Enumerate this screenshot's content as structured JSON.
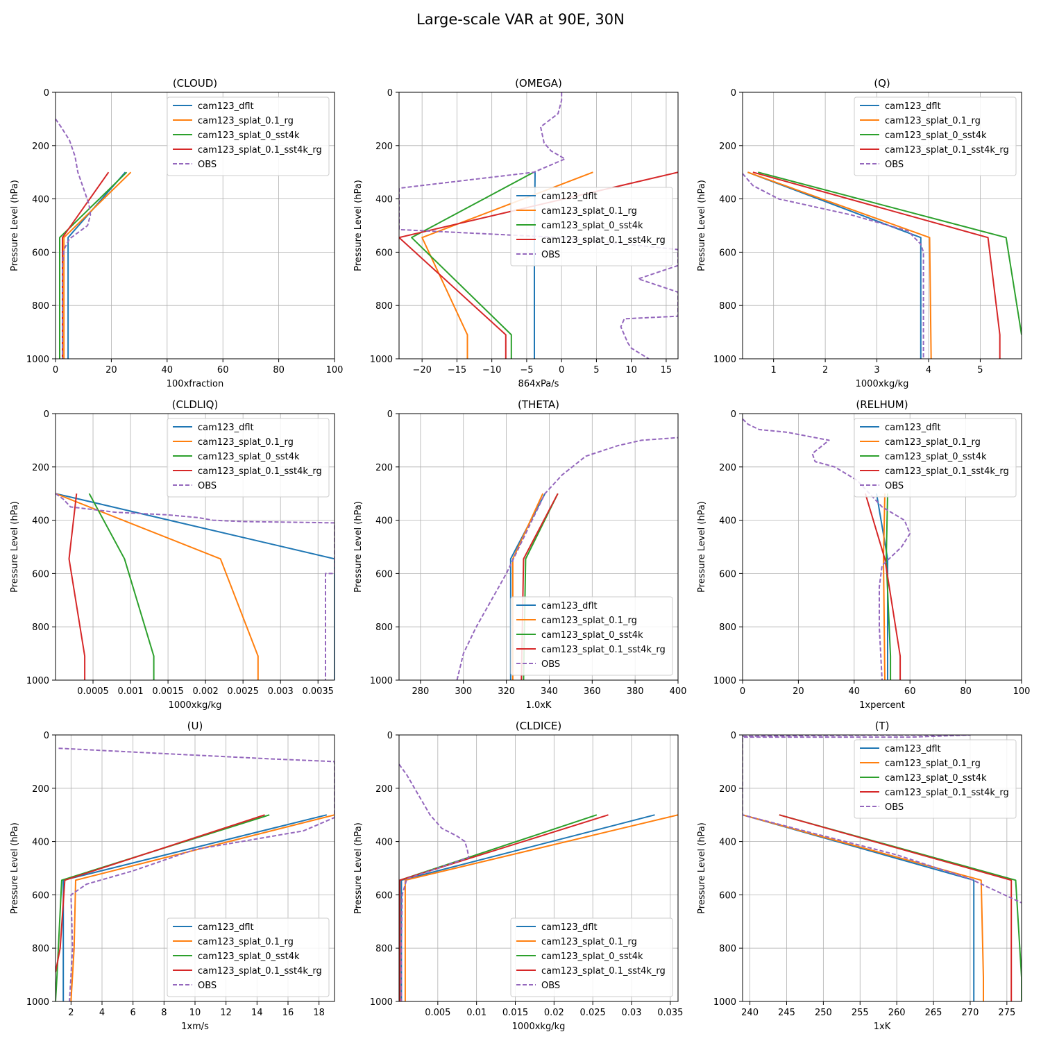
{
  "figure": {
    "title": "Large-scale VAR at 90E, 30N"
  },
  "colors": {
    "cam123_dflt": "#1f77b4",
    "cam123_splat_0.1_rg": "#ff7f0e",
    "cam123_splat_0_sst4k": "#2ca02c",
    "cam123_splat_0.1_sst4k_rg": "#d62728",
    "OBS": "#9467bd"
  },
  "chart_data": [
    {
      "type": "line",
      "title": "(CLOUD)",
      "xlabel": "100xfraction",
      "ylabel": "Pressure Level (hPa)",
      "xlim": [
        0,
        100
      ],
      "ylim": [
        1000,
        0
      ],
      "xticks": [
        0,
        20,
        40,
        60,
        80,
        100
      ],
      "yticks": [
        0,
        200,
        400,
        600,
        800,
        1000
      ],
      "grid": true,
      "legend": "top-right",
      "series": [
        {
          "name": "cam123_dflt",
          "x": [
            25,
            4.5,
            4.5
          ],
          "y": [
            300,
            545,
            1000
          ]
        },
        {
          "name": "cam123_splat_0.1_rg",
          "x": [
            27,
            3,
            3
          ],
          "y": [
            300,
            545,
            1000
          ]
        },
        {
          "name": "cam123_splat_0_sst4k",
          "x": [
            25.5,
            1.5,
            1.5
          ],
          "y": [
            300,
            545,
            1000
          ]
        },
        {
          "name": "cam123_splat_0.1_sst4k_rg",
          "x": [
            19,
            2.5,
            2.5
          ],
          "y": [
            300,
            545,
            1000
          ]
        },
        {
          "name": "OBS",
          "x": [
            0,
            2,
            5,
            7,
            8,
            10,
            12,
            12.5,
            11.5,
            5,
            3,
            2.5,
            2.5,
            2.5
          ],
          "y": [
            100,
            130,
            180,
            240,
            300,
            360,
            420,
            460,
            500,
            550,
            590,
            650,
            800,
            1000
          ]
        }
      ]
    },
    {
      "type": "line",
      "title": "(OMEGA)",
      "xlabel": "864xPa/s",
      "ylabel": "Pressure Level (hPa)",
      "xlim": [
        -23.3,
        16.7
      ],
      "ylim": [
        1000,
        0
      ],
      "xticks": [
        -20,
        -15,
        -10,
        -5,
        0,
        5,
        10,
        15
      ],
      "yticks": [
        0,
        200,
        400,
        600,
        800,
        1000
      ],
      "grid": true,
      "legend": "center-right",
      "series": [
        {
          "name": "cam123_dflt",
          "x": [
            -3.8,
            -3.9,
            -3.9
          ],
          "y": [
            300,
            545,
            1000
          ]
        },
        {
          "name": "cam123_splat_0.1_rg",
          "x": [
            4.5,
            -20,
            -13.5,
            -13.5
          ],
          "y": [
            300,
            545,
            910,
            1000
          ]
        },
        {
          "name": "cam123_splat_0_sst4k",
          "x": [
            -4,
            -21.5,
            -7.2,
            -7.2
          ],
          "y": [
            300,
            545,
            910,
            1000
          ]
        },
        {
          "name": "cam123_splat_0.1_sst4k_rg",
          "x": [
            16.7,
            -23.3,
            -8,
            -8
          ],
          "y": [
            300,
            545,
            910,
            1000
          ]
        },
        {
          "name": "OBS",
          "x": [
            0,
            0,
            -0.5,
            -3,
            -2.5,
            -1.5,
            0.5,
            -4,
            -23.3,
            -23.3,
            -23.3,
            0,
            16.7,
            16.7,
            11,
            16.7,
            16.7,
            9,
            8.5,
            9.5,
            10,
            12.5
          ],
          "y": [
            0,
            30,
            80,
            130,
            190,
            220,
            250,
            300,
            360,
            360,
            515,
            545,
            590,
            650,
            700,
            750,
            840,
            850,
            880,
            940,
            960,
            1000
          ]
        }
      ]
    },
    {
      "type": "line",
      "title": "(Q)",
      "xlabel": "1000xkg/kg",
      "ylabel": "Pressure Level (hPa)",
      "xlim": [
        0.4,
        5.8
      ],
      "ylim": [
        1000,
        0
      ],
      "xticks": [
        1,
        2,
        3,
        4,
        5
      ],
      "yticks": [
        0,
        200,
        400,
        600,
        800,
        1000
      ],
      "grid": true,
      "legend": "top-right",
      "series": [
        {
          "name": "cam123_dflt",
          "x": [
            0.5,
            3.85,
            3.85
          ],
          "y": [
            300,
            545,
            1000
          ]
        },
        {
          "name": "cam123_splat_0.1_rg",
          "x": [
            0.5,
            4.02,
            4.05
          ],
          "y": [
            300,
            545,
            1000
          ]
        },
        {
          "name": "cam123_splat_0_sst4k",
          "x": [
            0.7,
            5.5,
            5.8
          ],
          "y": [
            300,
            545,
            910
          ]
        },
        {
          "name": "cam123_splat_0.1_sst4k_rg",
          "x": [
            0.6,
            5.15,
            5.38,
            5.38
          ],
          "y": [
            300,
            545,
            910,
            1000
          ]
        },
        {
          "name": "OBS",
          "x": [
            0.4,
            0.6,
            1.1,
            2.5,
            3.6,
            3.85,
            3.9,
            3.9,
            3.9
          ],
          "y": [
            305,
            350,
            400,
            460,
            520,
            570,
            600,
            800,
            1000
          ]
        }
      ]
    },
    {
      "type": "line",
      "title": "(CLDLIQ)",
      "xlabel": "1000xkg/kg",
      "ylabel": "Pressure Level (hPa)",
      "xlim": [
        0,
        0.00372
      ],
      "ylim": [
        1000,
        0
      ],
      "xticks": [
        0.0005,
        0.001,
        0.0015,
        0.002,
        0.0025,
        0.003,
        0.0035
      ],
      "yticks": [
        0,
        200,
        400,
        600,
        800,
        1000
      ],
      "grid": true,
      "legend": "top-right",
      "series": [
        {
          "name": "cam123_dflt",
          "x": [
            0,
            0.00372,
            0.00372
          ],
          "y": [
            300,
            545,
            1000
          ]
        },
        {
          "name": "cam123_splat_0.1_rg",
          "x": [
            0,
            0.0022,
            0.0027,
            0.0027
          ],
          "y": [
            300,
            545,
            910,
            1000
          ]
        },
        {
          "name": "cam123_splat_0_sst4k",
          "x": [
            0.00045,
            0.00092,
            0.00131,
            0.00131
          ],
          "y": [
            300,
            545,
            910,
            1000
          ]
        },
        {
          "name": "cam123_splat_0.1_sst4k_rg",
          "x": [
            0.00028,
            0.00018,
            0.00039,
            0.00039
          ],
          "y": [
            300,
            545,
            910,
            1000
          ]
        },
        {
          "name": "OBS",
          "x": [
            0,
            0.0001,
            0.0002,
            0.0008,
            0.0015,
            0.0019,
            0.0021,
            0.0025,
            0.00372,
            0.00372,
            0.0036,
            0.0036,
            0.0036
          ],
          "y": [
            300,
            320,
            350,
            370,
            380,
            390,
            400,
            405,
            410,
            600,
            600,
            800,
            1000
          ]
        }
      ]
    },
    {
      "type": "line",
      "title": "(THETA)",
      "xlabel": "1.0xK",
      "ylabel": "Pressure Level (hPa)",
      "xlim": [
        270,
        400
      ],
      "ylim": [
        1000,
        0
      ],
      "xticks": [
        280,
        300,
        320,
        340,
        360,
        380,
        400
      ],
      "yticks": [
        0,
        200,
        400,
        600,
        800,
        1000
      ],
      "grid": true,
      "legend": "bottom-right",
      "series": [
        {
          "name": "cam123_dflt",
          "x": [
            338,
            322,
            322
          ],
          "y": [
            300,
            545,
            1000
          ]
        },
        {
          "name": "cam123_splat_0.1_rg",
          "x": [
            337,
            323,
            323
          ],
          "y": [
            300,
            545,
            1000
          ]
        },
        {
          "name": "cam123_splat_0_sst4k",
          "x": [
            344,
            329,
            328
          ],
          "y": [
            300,
            545,
            1000
          ]
        },
        {
          "name": "cam123_splat_0.1_sst4k_rg",
          "x": [
            344,
            328,
            327
          ],
          "y": [
            300,
            545,
            1000
          ]
        },
        {
          "name": "OBS",
          "x": [
            297,
            300,
            306,
            313,
            320,
            326,
            332,
            338,
            346,
            357,
            372,
            383,
            400
          ],
          "y": [
            1000,
            900,
            800,
            700,
            600,
            500,
            400,
            300,
            230,
            160,
            120,
            100,
            90
          ]
        }
      ]
    },
    {
      "type": "line",
      "title": "(RELHUM)",
      "xlabel": "1xpercent",
      "ylabel": "Pressure Level (hPa)",
      "xlim": [
        0,
        100
      ],
      "ylim": [
        1000,
        0
      ],
      "xticks": [
        0,
        20,
        40,
        60,
        80,
        100
      ],
      "yticks": [
        0,
        200,
        400,
        600,
        800,
        1000
      ],
      "grid": true,
      "legend": "top-right",
      "series": [
        {
          "name": "cam123_dflt",
          "x": [
            48,
            52,
            52
          ],
          "y": [
            300,
            545,
            1000
          ]
        },
        {
          "name": "cam123_splat_0.1_rg",
          "x": [
            51,
            50.5,
            51
          ],
          "y": [
            300,
            545,
            1000
          ]
        },
        {
          "name": "cam123_splat_0_sst4k",
          "x": [
            52,
            51.5,
            53,
            53
          ],
          "y": [
            300,
            545,
            910,
            1000
          ]
        },
        {
          "name": "cam123_splat_0.1_sst4k_rg",
          "x": [
            44,
            51,
            56.5,
            56.5
          ],
          "y": [
            300,
            545,
            910,
            1000
          ]
        },
        {
          "name": "OBS",
          "x": [
            0,
            2,
            6,
            16,
            31,
            25,
            26,
            33,
            41,
            50,
            58,
            60,
            57,
            50,
            49,
            49,
            49.5,
            50
          ],
          "y": [
            20,
            40,
            60,
            70,
            100,
            150,
            180,
            200,
            250,
            350,
            400,
            450,
            500,
            570,
            650,
            800,
            900,
            1000
          ]
        }
      ]
    },
    {
      "type": "line",
      "title": "(U)",
      "xlabel": "1xm/s",
      "ylabel": "Pressure Level (hPa)",
      "xlim": [
        1,
        19
      ],
      "ylim": [
        1000,
        0
      ],
      "xticks": [
        2,
        4,
        6,
        8,
        10,
        12,
        14,
        16,
        18
      ],
      "yticks": [
        0,
        200,
        400,
        600,
        800,
        1000
      ],
      "grid": true,
      "legend": "bottom-right",
      "series": [
        {
          "name": "cam123_dflt",
          "x": [
            18.5,
            1.5,
            1.5,
            1.5
          ],
          "y": [
            300,
            545,
            800,
            1000
          ]
        },
        {
          "name": "cam123_splat_0.1_rg",
          "x": [
            19,
            2.3,
            2.2,
            2.0
          ],
          "y": [
            300,
            545,
            800,
            1000
          ]
        },
        {
          "name": "cam123_splat_0_sst4k",
          "x": [
            14.8,
            1.4,
            1.1,
            1.0
          ],
          "y": [
            300,
            545,
            900,
            1000
          ]
        },
        {
          "name": "cam123_splat_0.1_sst4k_rg",
          "x": [
            14.5,
            1.6,
            1.3,
            1.0
          ],
          "y": [
            300,
            545,
            800,
            890
          ]
        },
        {
          "name": "OBS",
          "x": [
            1.2,
            8,
            15,
            19,
            19,
            17,
            10,
            6,
            3,
            2,
            2.1,
            1.9
          ],
          "y": [
            50,
            70,
            90,
            100,
            310,
            360,
            430,
            510,
            560,
            600,
            800,
            1000
          ]
        }
      ]
    },
    {
      "type": "line",
      "title": "(CLDICE)",
      "xlabel": "1000xkg/kg",
      "ylabel": "Pressure Level (hPa)",
      "xlim": [
        0,
        0.036
      ],
      "ylim": [
        1000,
        0
      ],
      "xticks": [
        0.005,
        0.01,
        0.015,
        0.02,
        0.025,
        0.03,
        0.035
      ],
      "yticks": [
        0,
        200,
        400,
        600,
        800,
        1000
      ],
      "grid": true,
      "legend": "bottom-right",
      "series": [
        {
          "name": "cam123_dflt",
          "x": [
            0.033,
            0.0003,
            0.0003
          ],
          "y": [
            300,
            545,
            1000
          ]
        },
        {
          "name": "cam123_splat_0.1_rg",
          "x": [
            0.036,
            0.0008,
            0.0008
          ],
          "y": [
            300,
            545,
            1000
          ]
        },
        {
          "name": "cam123_splat_0_sst4k",
          "x": [
            0.0255,
            0.0001,
            0.0001
          ],
          "y": [
            300,
            545,
            1000
          ]
        },
        {
          "name": "cam123_splat_0.1_sst4k_rg",
          "x": [
            0.027,
            0.0001,
            0.0001
          ],
          "y": [
            300,
            545,
            1000
          ]
        },
        {
          "name": "OBS",
          "x": [
            0,
            0.001,
            0.002,
            0.003,
            0.004,
            0.0055,
            0.0075,
            0.0085,
            0.0088,
            0.009,
            0.005,
            0.001,
            0.0004,
            0.0003,
            0.0003
          ],
          "y": [
            110,
            150,
            200,
            250,
            300,
            350,
            380,
            400,
            430,
            460,
            500,
            540,
            600,
            800,
            1000
          ]
        }
      ]
    },
    {
      "type": "line",
      "title": "(T)",
      "xlabel": "1xK",
      "ylabel": "Pressure Level (hPa)",
      "xlim": [
        239,
        277
      ],
      "ylim": [
        1000,
        0
      ],
      "xticks": [
        240,
        245,
        250,
        255,
        260,
        265,
        270,
        275
      ],
      "yticks": [
        0,
        200,
        400,
        600,
        800,
        1000
      ],
      "grid": true,
      "legend": "top-right",
      "series": [
        {
          "name": "cam123_dflt",
          "x": [
            239,
            270.5,
            270.5
          ],
          "y": [
            300,
            545,
            1000
          ]
        },
        {
          "name": "cam123_splat_0.1_rg",
          "x": [
            239,
            271.5,
            271.8,
            271.8
          ],
          "y": [
            300,
            545,
            910,
            1000
          ]
        },
        {
          "name": "cam123_splat_0_sst4k",
          "x": [
            244,
            276.2,
            277,
            277
          ],
          "y": [
            300,
            545,
            910,
            1000
          ]
        },
        {
          "name": "cam123_splat_0.1_sst4k_rg",
          "x": [
            244,
            275.6,
            275.6,
            275.6
          ],
          "y": [
            300,
            545,
            910,
            1000
          ]
        },
        {
          "name": "OBS",
          "x": [
            239,
            248,
            258,
            270,
            262,
            239,
            239,
            260,
            270,
            277
          ],
          "y": [
            5,
            2,
            0,
            0,
            8,
            8,
            300,
            450,
            540,
            630
          ]
        }
      ]
    }
  ]
}
